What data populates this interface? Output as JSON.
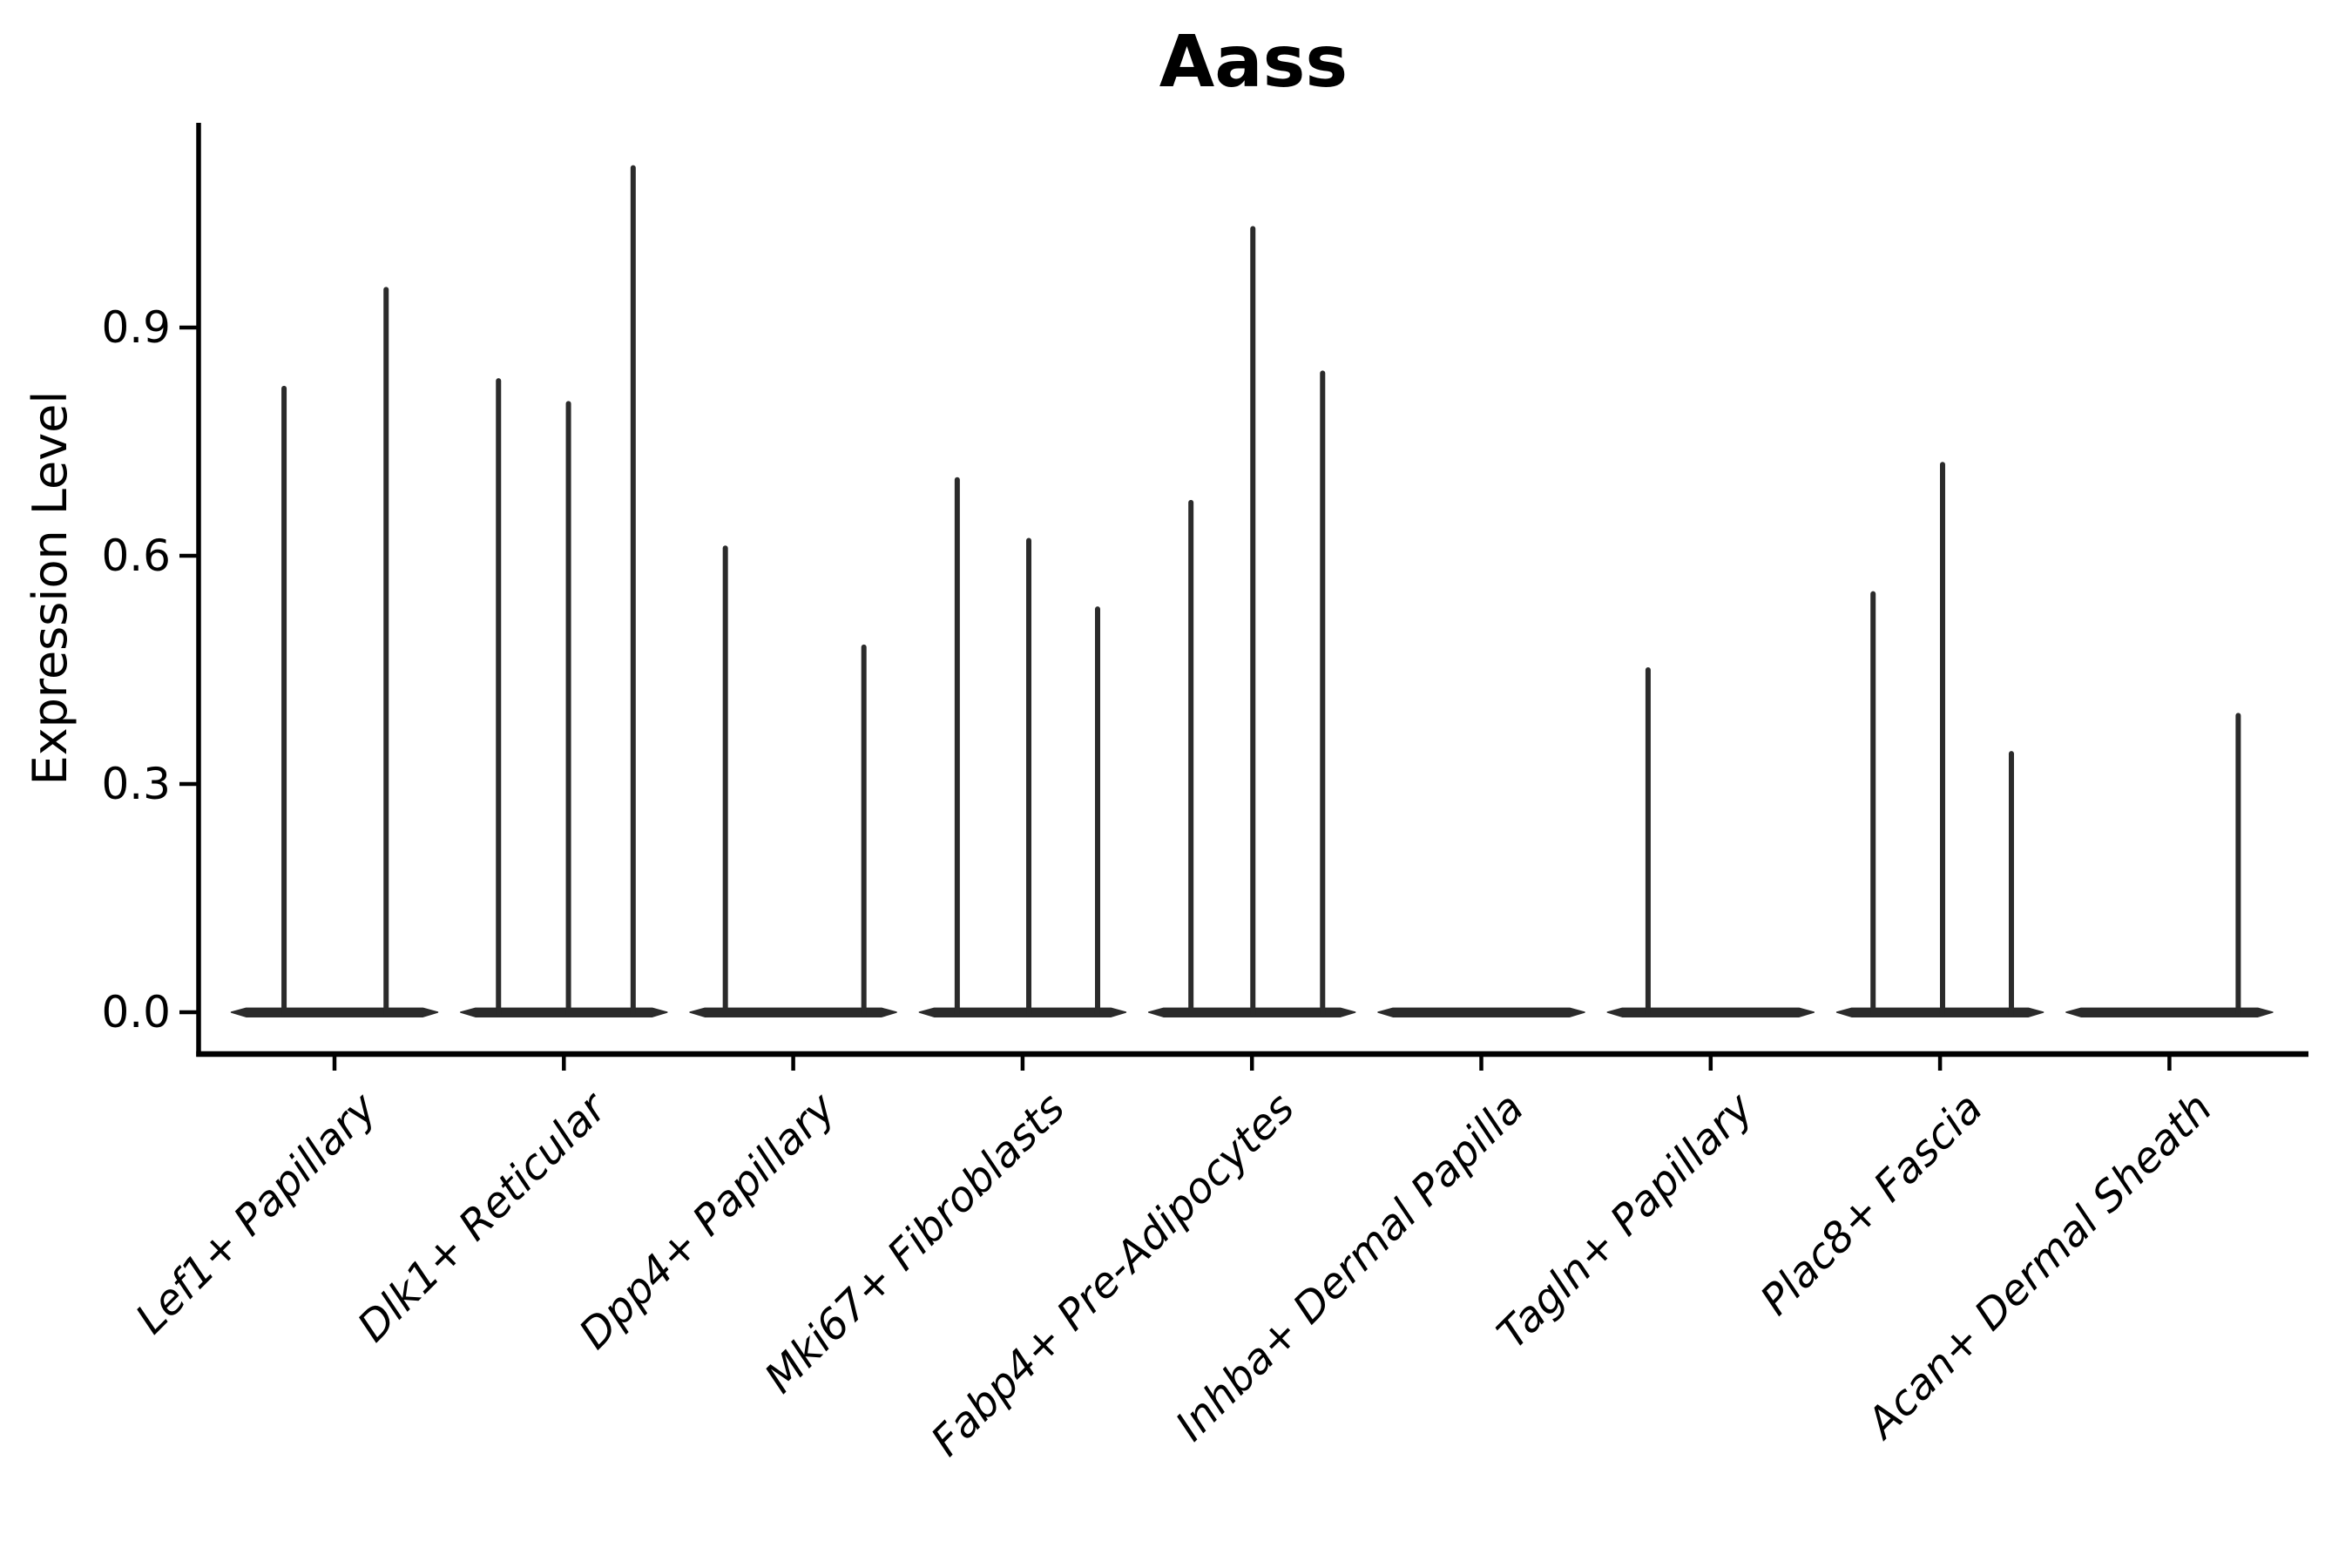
{
  "page": {
    "background_color": "#ffffff",
    "text_color": "#000000"
  },
  "chart_data": {
    "type": "violin",
    "title": "Aass",
    "xlabel": "",
    "ylabel": "Expression Level",
    "ytick_labels": [
      "0.0",
      "0.3",
      "0.6",
      "0.9"
    ],
    "ytick_values": [
      0.0,
      0.3,
      0.6,
      0.9
    ],
    "ylim": [
      -0.055,
      1.17
    ],
    "grid": false,
    "legend": "none",
    "violin_color": "#2b2b2b",
    "axis_color": "#000000",
    "violin_halfwidth_frac": 0.45,
    "categories": [
      "Lef1+ Papillary",
      "Dlk1+ Reticular",
      "Dpp4+ Papillary",
      "Mki67+ Fibroblasts",
      "Fabp4+ Pre-Adipocytes",
      "Inhba+ Dermal Papilla",
      "Tagln+ Papillary",
      "Plac8+ Fascia",
      "Acan+ Dermal Sheath"
    ],
    "series": [
      {
        "category": "Lef1+ Papillary",
        "peaks": [
          {
            "offset": -0.22,
            "value": 0.82
          },
          {
            "offset": 0.225,
            "value": 0.95
          }
        ]
      },
      {
        "category": "Dlk1+ Reticular",
        "peaks": [
          {
            "offset": -0.285,
            "value": 0.83
          },
          {
            "offset": 0.02,
            "value": 0.8
          },
          {
            "offset": 0.302,
            "value": 1.11
          }
        ]
      },
      {
        "category": "Dpp4+ Papillary",
        "peaks": [
          {
            "offset": -0.296,
            "value": 0.61
          },
          {
            "offset": 0.308,
            "value": 0.48
          }
        ]
      },
      {
        "category": "Mki67+ Fibroblasts",
        "peaks": [
          {
            "offset": -0.285,
            "value": 0.7
          },
          {
            "offset": 0.027,
            "value": 0.62
          },
          {
            "offset": 0.327,
            "value": 0.53
          }
        ]
      },
      {
        "category": "Fabp4+ Pre-Adipocytes",
        "peaks": [
          {
            "offset": -0.266,
            "value": 0.67
          },
          {
            "offset": 0.004,
            "value": 1.03
          },
          {
            "offset": 0.308,
            "value": 0.84
          }
        ]
      },
      {
        "category": "Inhba+ Dermal Papilla",
        "peaks": []
      },
      {
        "category": "Tagln+ Papillary",
        "peaks": [
          {
            "offset": -0.273,
            "value": 0.45
          }
        ]
      },
      {
        "category": "Plac8+ Fascia",
        "peaks": [
          {
            "offset": -0.292,
            "value": 0.55
          },
          {
            "offset": 0.011,
            "value": 0.72
          },
          {
            "offset": 0.311,
            "value": 0.34
          }
        ]
      },
      {
        "category": "Acan+ Dermal Sheath",
        "peaks": [
          {
            "offset": 0.3,
            "value": 0.39
          }
        ]
      }
    ]
  }
}
